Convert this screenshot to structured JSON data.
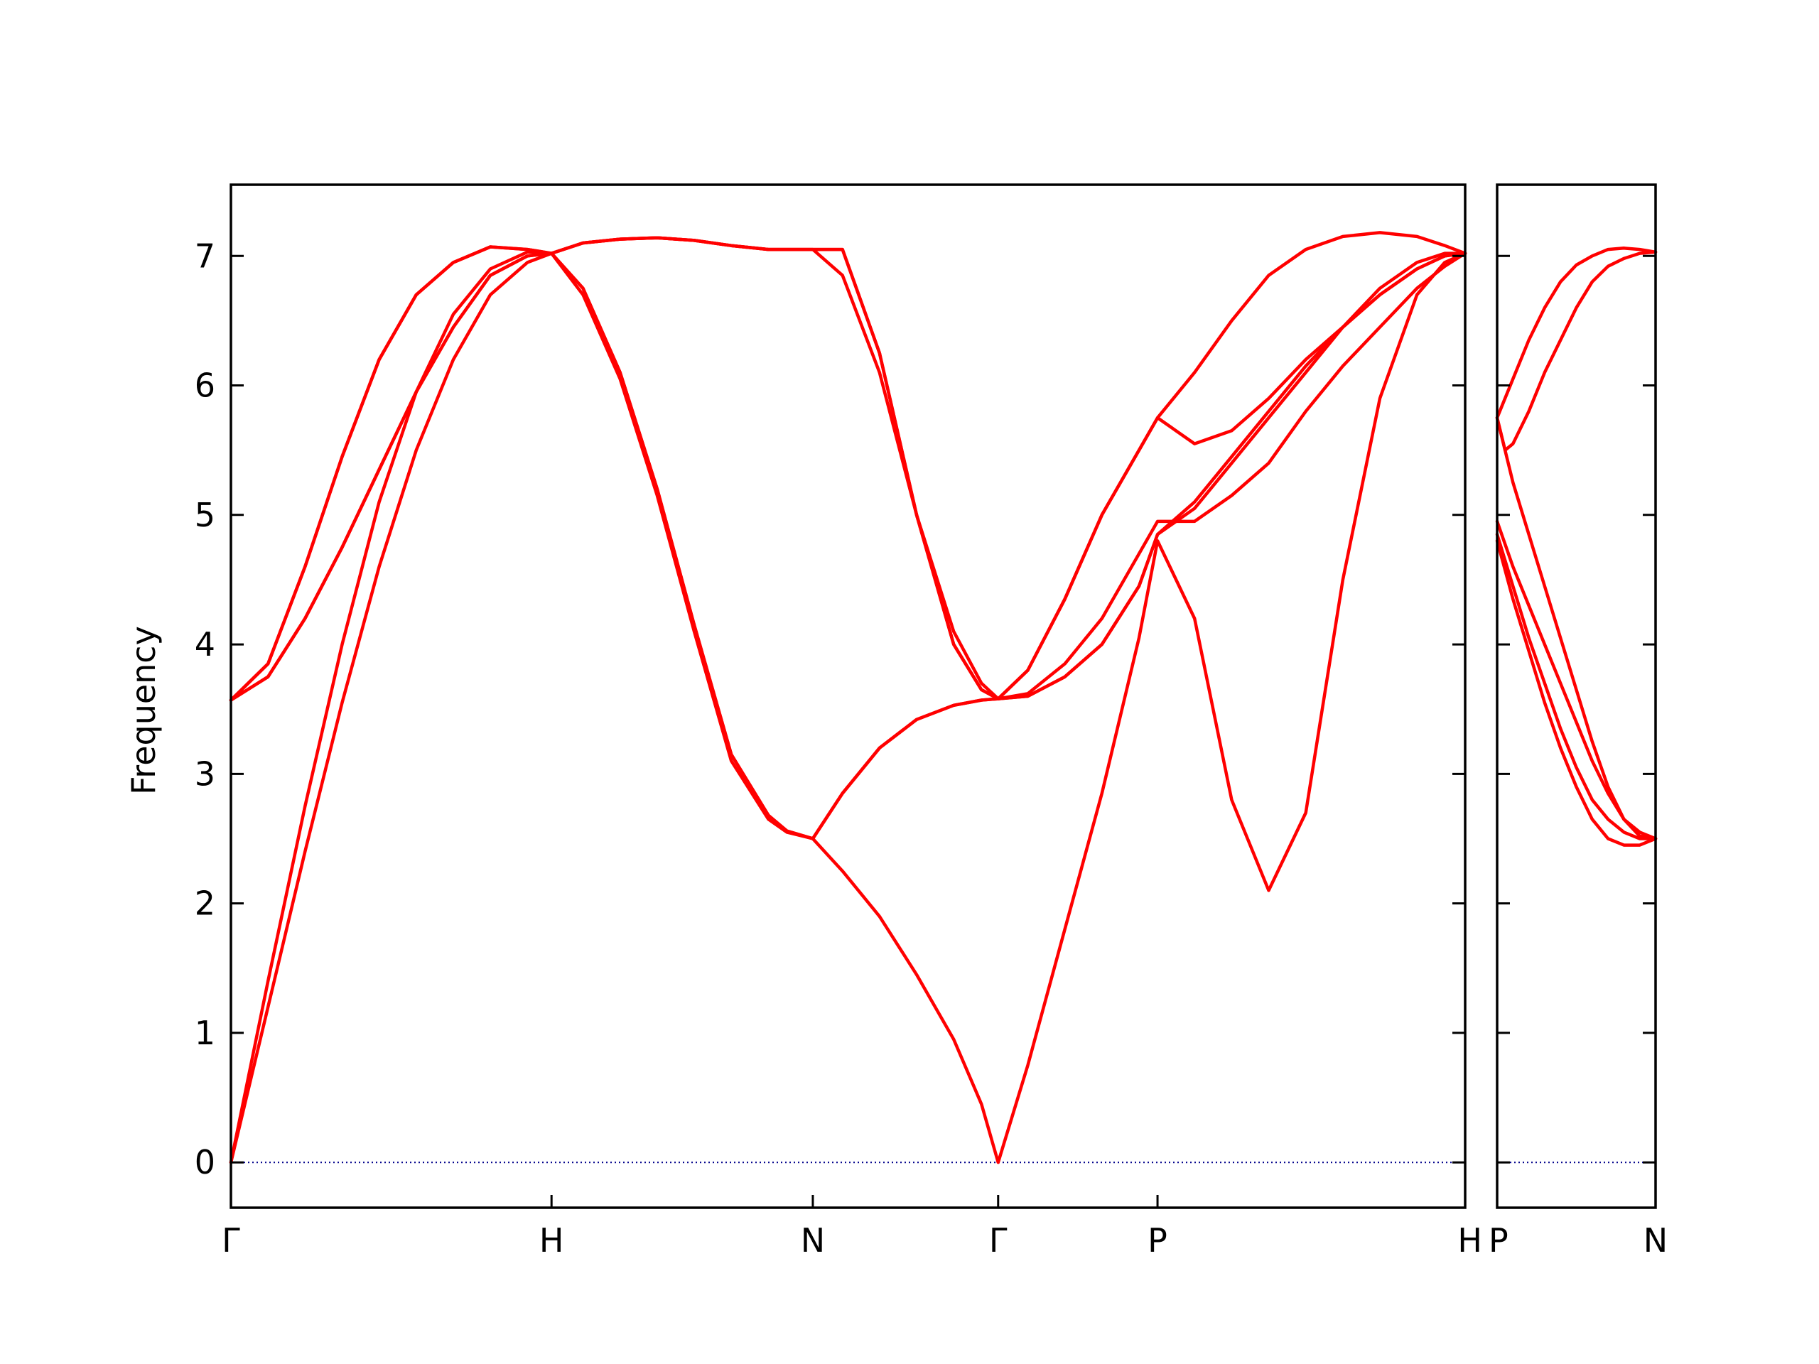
{
  "chart_data": {
    "type": "line",
    "ylabel": "Frequency",
    "ylim": [
      -0.35,
      7.55
    ],
    "yticks": [
      0,
      1,
      2,
      3,
      4,
      5,
      6,
      7
    ],
    "colors": {
      "band": "#ff0000",
      "zero_line": "#00008b",
      "frame": "#000000"
    },
    "panels": [
      {
        "id": "main",
        "xlim": [
          0,
          6.66
        ],
        "high_symmetry_points": [
          {
            "label": "Γ",
            "x": 0.0
          },
          {
            "label": "H",
            "x": 1.73
          },
          {
            "label": "N",
            "x": 3.14
          },
          {
            "label": "Γ",
            "x": 4.14
          },
          {
            "label": "P",
            "x": 5.0
          },
          {
            "label": "H",
            "x": 6.66
          }
        ],
        "series": [
          {
            "x": [
              0,
              0.2,
              0.4,
              0.6,
              0.8,
              1.0,
              1.2,
              1.4,
              1.6,
              1.73,
              1.9,
              2.1,
              2.3,
              2.5,
              2.7,
              2.9,
              3.0,
              3.14,
              3.3,
              3.5,
              3.7,
              3.9,
              4.05,
              4.14,
              4.3,
              4.5,
              4.7,
              4.9,
              5.0,
              5.2,
              5.4,
              5.6,
              5.8,
              6.0,
              6.2,
              6.4,
              6.55,
              6.66
            ],
            "y": [
              0,
              1.2,
              2.4,
              3.55,
              4.6,
              5.5,
              6.2,
              6.7,
              6.95,
              7.02,
              6.7,
              6.05,
              5.15,
              4.1,
              3.1,
              2.65,
              2.55,
              2.5,
              2.25,
              1.9,
              1.45,
              0.95,
              0.45,
              0.0,
              0.75,
              1.8,
              2.85,
              4.05,
              4.8,
              4.2,
              2.8,
              2.1,
              2.7,
              4.5,
              5.9,
              6.7,
              6.95,
              7.02
            ]
          },
          {
            "x": [
              0,
              0.2,
              0.4,
              0.6,
              0.8,
              1.0,
              1.2,
              1.4,
              1.6,
              1.73,
              1.9,
              2.1,
              2.3,
              2.5,
              2.7,
              2.9,
              3.0,
              3.14,
              3.3,
              3.5,
              3.7,
              3.9,
              4.05,
              4.14,
              4.3,
              4.5,
              4.7,
              4.9,
              5.0,
              5.2,
              5.4,
              5.6,
              5.8,
              6.0,
              6.2,
              6.4,
              6.55,
              6.66
            ],
            "y": [
              0,
              1.4,
              2.75,
              4.0,
              5.1,
              5.95,
              6.55,
              6.9,
              7.03,
              7.02,
              6.75,
              6.1,
              5.2,
              4.15,
              3.15,
              2.68,
              2.56,
              2.5,
              2.85,
              3.2,
              3.42,
              3.53,
              3.57,
              3.58,
              3.6,
              3.75,
              4.0,
              4.45,
              4.85,
              5.1,
              5.45,
              5.8,
              6.15,
              6.45,
              6.7,
              6.9,
              7.0,
              7.02
            ]
          },
          {
            "x": [
              0,
              0.2,
              0.4,
              0.6,
              0.8,
              1.0,
              1.2,
              1.4,
              1.6,
              1.73,
              1.9,
              2.1,
              2.3,
              2.5,
              2.7,
              2.9,
              3.0,
              3.14,
              3.3,
              3.5,
              3.7,
              3.9,
              4.05,
              4.14,
              4.3,
              4.5,
              4.7,
              4.9,
              5.0,
              5.2,
              5.4,
              5.6,
              5.8,
              6.0,
              6.2,
              6.4,
              6.55,
              6.66
            ],
            "y": [
              3.57,
              3.75,
              4.2,
              4.75,
              5.35,
              5.95,
              6.45,
              6.85,
              7.0,
              7.02,
              7.1,
              7.13,
              7.14,
              7.12,
              7.08,
              7.05,
              7.05,
              7.05,
              6.85,
              6.1,
              5.0,
              4.1,
              3.7,
              3.58,
              3.62,
              3.85,
              4.2,
              4.7,
              4.95,
              4.95,
              5.15,
              5.4,
              5.8,
              6.15,
              6.45,
              6.75,
              6.92,
              7.02
            ]
          },
          {
            "x": [
              0,
              0.2,
              0.4,
              0.6,
              0.8,
              1.0,
              1.2,
              1.4,
              1.6,
              1.73,
              1.9,
              2.1,
              2.3,
              2.5,
              2.7,
              2.9,
              3.0,
              3.14,
              3.3,
              3.5,
              3.7,
              3.9,
              4.05,
              4.14,
              4.3,
              4.5,
              4.7,
              4.9,
              5.0,
              5.2,
              5.4,
              5.6,
              5.8,
              6.0,
              6.2,
              6.4,
              6.55,
              6.66
            ],
            "y": [
              3.57,
              3.85,
              4.6,
              5.45,
              6.2,
              6.7,
              6.95,
              7.07,
              7.05,
              7.02,
              7.1,
              7.13,
              7.14,
              7.12,
              7.08,
              7.05,
              7.05,
              7.05,
              7.05,
              6.25,
              5.0,
              4.0,
              3.65,
              3.58,
              3.8,
              4.35,
              5.0,
              5.5,
              5.75,
              5.55,
              5.65,
              5.9,
              6.2,
              6.45,
              6.7,
              6.9,
              7.0,
              7.02
            ]
          },
          {
            "x": [
              0,
              0.2,
              0.4,
              0.6,
              0.8,
              1.0,
              1.2,
              1.4,
              1.6,
              1.73,
              1.9,
              2.1,
              2.3,
              2.5,
              2.7,
              2.9,
              3.0,
              3.14,
              3.3,
              3.5,
              3.7,
              3.9,
              4.05,
              4.14,
              4.3,
              4.5,
              4.7,
              4.9,
              5.0,
              5.2,
              5.4,
              5.6,
              5.8,
              6.0,
              6.2,
              6.4,
              6.55,
              6.66
            ],
            "y": [
              3.57,
              3.85,
              4.6,
              5.45,
              6.2,
              6.7,
              6.95,
              7.07,
              7.05,
              7.02,
              7.1,
              7.13,
              7.14,
              7.12,
              7.08,
              7.05,
              7.05,
              7.05,
              7.05,
              6.25,
              5.0,
              4.0,
              3.65,
              3.58,
              3.8,
              4.35,
              5.0,
              5.5,
              5.75,
              6.1,
              6.5,
              6.85,
              7.05,
              7.15,
              7.18,
              7.15,
              7.08,
              7.02
            ]
          },
          {
            "x": [
              0,
              0.2,
              0.4,
              0.6,
              0.8,
              1.0,
              1.2,
              1.4,
              1.6,
              1.73,
              1.9,
              2.1,
              2.3,
              2.5,
              2.7,
              2.9,
              3.0,
              3.14,
              3.3,
              3.5,
              3.7,
              3.9,
              4.05,
              4.14,
              4.3,
              4.5,
              4.7,
              4.9,
              5.0,
              5.2,
              5.4,
              5.6,
              5.8,
              6.0,
              6.2,
              6.4,
              6.55,
              6.66
            ],
            "y": [
              3.57,
              3.75,
              4.2,
              4.75,
              5.35,
              5.95,
              6.45,
              6.85,
              7.0,
              7.02,
              6.75,
              6.1,
              5.2,
              4.15,
              3.15,
              2.68,
              2.56,
              2.5,
              2.85,
              3.2,
              3.42,
              3.53,
              3.57,
              3.58,
              3.6,
              3.75,
              4.0,
              4.45,
              4.85,
              5.05,
              5.4,
              5.75,
              6.1,
              6.45,
              6.75,
              6.95,
              7.02,
              7.02
            ]
          }
        ]
      },
      {
        "id": "right",
        "xlim": [
          0,
          1.0
        ],
        "high_symmetry_points": [
          {
            "label": "P",
            "x": 0.0
          },
          {
            "label": "N",
            "x": 1.0
          }
        ],
        "series": [
          {
            "x": [
              0,
              0.1,
              0.2,
              0.3,
              0.4,
              0.5,
              0.6,
              0.7,
              0.8,
              0.9,
              1.0
            ],
            "y": [
              4.8,
              4.35,
              3.95,
              3.55,
              3.2,
              2.9,
              2.65,
              2.5,
              2.45,
              2.45,
              2.5
            ]
          },
          {
            "x": [
              0,
              0.1,
              0.2,
              0.3,
              0.4,
              0.5,
              0.6,
              0.7,
              0.8,
              0.9,
              1.0
            ],
            "y": [
              4.85,
              4.45,
              4.05,
              3.7,
              3.35,
              3.05,
              2.8,
              2.65,
              2.55,
              2.5,
              2.5
            ]
          },
          {
            "x": [
              0,
              0.1,
              0.2,
              0.3,
              0.4,
              0.5,
              0.6,
              0.7,
              0.8,
              0.9,
              1.0
            ],
            "y": [
              4.95,
              4.6,
              4.3,
              4.0,
              3.7,
              3.4,
              3.1,
              2.85,
              2.65,
              2.55,
              2.5
            ]
          },
          {
            "x": [
              0,
              0.1,
              0.2,
              0.3,
              0.4,
              0.5,
              0.6,
              0.7,
              0.8,
              0.9,
              1.0
            ],
            "y": [
              5.75,
              5.25,
              4.85,
              4.45,
              4.05,
              3.65,
              3.25,
              2.9,
              2.65,
              2.52,
              2.5
            ]
          },
          {
            "x": [
              0,
              0.05,
              0.1,
              0.2,
              0.3,
              0.4,
              0.5,
              0.6,
              0.7,
              0.8,
              0.9,
              1.0
            ],
            "y": [
              5.75,
              5.5,
              5.55,
              5.8,
              6.1,
              6.35,
              6.6,
              6.8,
              6.92,
              6.98,
              7.02,
              7.03
            ]
          },
          {
            "x": [
              0,
              0.1,
              0.2,
              0.3,
              0.4,
              0.5,
              0.6,
              0.7,
              0.8,
              0.9,
              1.0
            ],
            "y": [
              5.75,
              6.05,
              6.35,
              6.6,
              6.8,
              6.93,
              7.0,
              7.05,
              7.06,
              7.05,
              7.03
            ]
          }
        ]
      }
    ]
  }
}
